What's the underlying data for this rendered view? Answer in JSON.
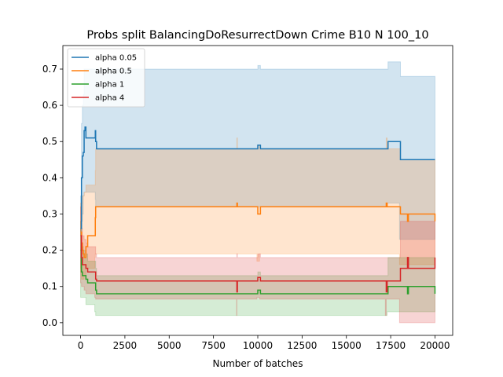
{
  "chart_data": {
    "type": "line",
    "title": "Probs split BalancingDoResurrectDown Crime B10 N 100_10",
    "xlabel": "Number of batches",
    "ylabel": "",
    "xlim": [
      -1000,
      21000
    ],
    "ylim": [
      -0.035,
      0.765
    ],
    "x_ticks": [
      0,
      2500,
      5000,
      7500,
      10000,
      12500,
      15000,
      17500,
      20000
    ],
    "x_tick_labels": [
      "0",
      "2500",
      "5000",
      "7500",
      "10000",
      "12500",
      "15000",
      "17500",
      "20000"
    ],
    "y_ticks": [
      0.0,
      0.1,
      0.2,
      0.3,
      0.4,
      0.5,
      0.6,
      0.7
    ],
    "y_tick_labels": [
      "0.0",
      "0.1",
      "0.2",
      "0.3",
      "0.4",
      "0.5",
      "0.6",
      "0.7"
    ],
    "grid": false,
    "legend": {
      "position": "top-left"
    },
    "series": [
      {
        "name": "alpha 0.05",
        "color": "#1f77b4",
        "x": [
          0,
          50,
          100,
          150,
          200,
          250,
          300,
          400,
          600,
          800,
          830,
          850,
          900,
          8800,
          8850,
          8900,
          9950,
          10000,
          10100,
          10150,
          10200,
          17200,
          17250,
          17300,
          17350,
          17400,
          18000,
          18050,
          18400,
          18450,
          18500,
          19950,
          20000
        ],
        "y": [
          0.26,
          0.4,
          0.46,
          0.47,
          0.53,
          0.54,
          0.51,
          0.51,
          0.51,
          0.51,
          0.53,
          0.5,
          0.48,
          0.48,
          0.48,
          0.48,
          0.48,
          0.49,
          0.49,
          0.48,
          0.48,
          0.48,
          0.48,
          0.48,
          0.5,
          0.5,
          0.5,
          0.45,
          0.45,
          0.45,
          0.45,
          0.45,
          0.45
        ],
        "lower": [
          0.15,
          0.25,
          0.28,
          0.3,
          0.35,
          0.36,
          0.36,
          0.36,
          0.36,
          0.36,
          0.36,
          0.34,
          0.32,
          0.32,
          0.32,
          0.32,
          0.32,
          0.32,
          0.32,
          0.32,
          0.32,
          0.32,
          0.32,
          0.32,
          0.33,
          0.33,
          0.33,
          0.23,
          0.23,
          0.23,
          0.23,
          0.23,
          0.23
        ],
        "upper": [
          0.35,
          0.55,
          0.6,
          0.63,
          0.7,
          0.7,
          0.7,
          0.7,
          0.7,
          0.7,
          0.7,
          0.7,
          0.7,
          0.7,
          0.7,
          0.7,
          0.7,
          0.71,
          0.71,
          0.7,
          0.7,
          0.7,
          0.7,
          0.7,
          0.72,
          0.72,
          0.72,
          0.68,
          0.68,
          0.68,
          0.68,
          0.68,
          0.68
        ]
      },
      {
        "name": "alpha 0.5",
        "color": "#ff7f0e",
        "x": [
          0,
          50,
          100,
          150,
          200,
          300,
          400,
          600,
          800,
          830,
          850,
          900,
          8800,
          8820,
          8850,
          8900,
          9950,
          10000,
          10100,
          10150,
          10200,
          17200,
          17250,
          17300,
          17350,
          17400,
          18000,
          18050,
          18400,
          18450,
          18500,
          19950,
          20000
        ],
        "y": [
          0.25,
          0.22,
          0.2,
          0.19,
          0.18,
          0.21,
          0.24,
          0.24,
          0.24,
          0.29,
          0.32,
          0.32,
          0.32,
          0.33,
          0.32,
          0.32,
          0.32,
          0.3,
          0.3,
          0.32,
          0.32,
          0.32,
          0.33,
          0.32,
          0.32,
          0.32,
          0.32,
          0.3,
          0.3,
          0.28,
          0.3,
          0.3,
          0.28
        ],
        "lower": [
          0.17,
          0.14,
          0.12,
          0.12,
          0.12,
          0.13,
          0.15,
          0.15,
          0.15,
          0.18,
          0.19,
          0.19,
          0.19,
          0.19,
          0.19,
          0.19,
          0.19,
          0.17,
          0.17,
          0.19,
          0.19,
          0.19,
          0.19,
          0.19,
          0.19,
          0.19,
          0.19,
          0.16,
          0.16,
          0.16,
          0.16,
          0.16,
          0.16
        ],
        "upper": [
          0.33,
          0.33,
          0.35,
          0.35,
          0.36,
          0.38,
          0.38,
          0.38,
          0.38,
          0.42,
          0.48,
          0.48,
          0.48,
          0.51,
          0.48,
          0.48,
          0.48,
          0.49,
          0.49,
          0.48,
          0.48,
          0.48,
          0.51,
          0.48,
          0.48,
          0.48,
          0.48,
          0.45,
          0.45,
          0.45,
          0.45,
          0.45,
          0.45
        ]
      },
      {
        "name": "alpha 1",
        "color": "#2ca02c",
        "x": [
          0,
          50,
          100,
          150,
          200,
          300,
          400,
          600,
          800,
          850,
          900,
          8800,
          8850,
          8900,
          9950,
          10000,
          10100,
          10150,
          10200,
          17200,
          17250,
          17300,
          17350,
          17400,
          18000,
          18050,
          18400,
          18450,
          18500,
          19950,
          20000
        ],
        "y": [
          0.2,
          0.14,
          0.13,
          0.13,
          0.13,
          0.12,
          0.11,
          0.11,
          0.11,
          0.09,
          0.08,
          0.08,
          0.08,
          0.08,
          0.08,
          0.09,
          0.09,
          0.08,
          0.08,
          0.08,
          0.08,
          0.08,
          0.1,
          0.1,
          0.1,
          0.1,
          0.1,
          0.08,
          0.1,
          0.1,
          0.08
        ],
        "lower": [
          0.12,
          0.07,
          0.07,
          0.07,
          0.07,
          0.07,
          0.05,
          0.05,
          0.05,
          0.03,
          0.02,
          0.02,
          0.02,
          0.02,
          0.02,
          0.02,
          0.02,
          0.02,
          0.02,
          0.02,
          0.02,
          0.02,
          0.03,
          0.03,
          0.03,
          0.03,
          0.03,
          0.03,
          0.03,
          0.03,
          0.03
        ],
        "upper": [
          0.28,
          0.22,
          0.21,
          0.2,
          0.2,
          0.19,
          0.17,
          0.17,
          0.17,
          0.15,
          0.13,
          0.13,
          0.13,
          0.13,
          0.13,
          0.14,
          0.14,
          0.13,
          0.13,
          0.13,
          0.13,
          0.13,
          0.18,
          0.18,
          0.18,
          0.18,
          0.18,
          0.18,
          0.18,
          0.18,
          0.18
        ]
      },
      {
        "name": "alpha 4",
        "color": "#d62728",
        "x": [
          0,
          50,
          100,
          150,
          200,
          300,
          400,
          600,
          800,
          850,
          900,
          8800,
          8820,
          8850,
          8900,
          9950,
          10000,
          10100,
          10150,
          10200,
          17200,
          17250,
          17300,
          17350,
          17400,
          18000,
          18050,
          18400,
          18450,
          18500,
          19950,
          20000
        ],
        "y": [
          0.24,
          0.18,
          0.16,
          0.16,
          0.16,
          0.15,
          0.14,
          0.14,
          0.14,
          0.12,
          0.115,
          0.115,
          0.085,
          0.115,
          0.115,
          0.115,
          0.125,
          0.125,
          0.115,
          0.115,
          0.115,
          0.085,
          0.115,
          0.115,
          0.115,
          0.115,
          0.15,
          0.15,
          0.18,
          0.15,
          0.15,
          0.18
        ],
        "lower": [
          0.16,
          0.11,
          0.1,
          0.1,
          0.1,
          0.09,
          0.08,
          0.08,
          0.08,
          0.07,
          0.065,
          0.065,
          0.02,
          0.065,
          0.065,
          0.065,
          0.07,
          0.07,
          0.065,
          0.065,
          0.065,
          0.02,
          0.065,
          0.065,
          0.065,
          0.065,
          0.0,
          0.0,
          0.0,
          0.0,
          0.0,
          0.0
        ],
        "upper": [
          0.32,
          0.26,
          0.24,
          0.24,
          0.23,
          0.22,
          0.21,
          0.21,
          0.21,
          0.19,
          0.18,
          0.18,
          0.19,
          0.18,
          0.18,
          0.18,
          0.19,
          0.19,
          0.18,
          0.18,
          0.18,
          0.18,
          0.18,
          0.18,
          0.18,
          0.18,
          0.28,
          0.28,
          0.28,
          0.28,
          0.28,
          0.28
        ]
      }
    ]
  }
}
